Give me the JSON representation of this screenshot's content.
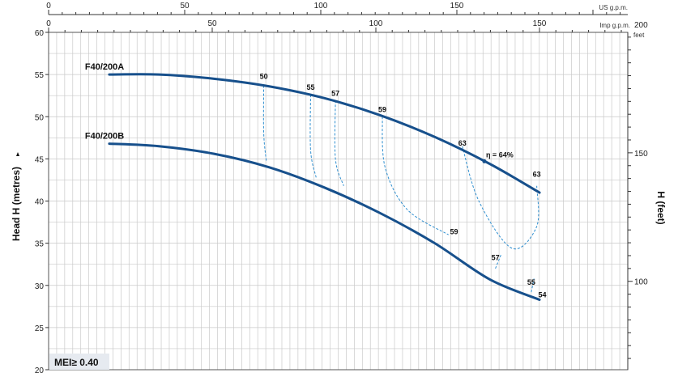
{
  "chart_data": {
    "type": "line",
    "y_axis": {
      "label": "Head H  (metres)",
      "range": [
        20,
        60
      ],
      "ticks": [
        "60",
        "55",
        "50",
        "45",
        "40",
        "35",
        "30",
        "25",
        "20"
      ]
    },
    "y2_axis": {
      "label": "H  (feet)",
      "unit": "feet",
      "ticks": [
        "200",
        "150",
        "100"
      ]
    },
    "x_axis_us": {
      "unit": "US g.p.m.",
      "range": [
        0,
        210
      ],
      "ticks": [
        "0",
        "50",
        "100",
        "150"
      ]
    },
    "x_axis_imp": {
      "unit": "Imp g.p.m.",
      "ticks": [
        "0",
        "50",
        "100",
        "150"
      ]
    },
    "series": [
      {
        "name": "F40/200A",
        "color": "#17508c",
        "points": [
          [
            22,
            55.0
          ],
          [
            40,
            55.0
          ],
          [
            60,
            54.5
          ],
          [
            80,
            53.6
          ],
          [
            100,
            52.2
          ],
          [
            120,
            50.2
          ],
          [
            140,
            47.6
          ],
          [
            160,
            44.4
          ],
          [
            178,
            41.0
          ]
        ]
      },
      {
        "name": "F40/200B",
        "color": "#17508c",
        "points": [
          [
            22,
            46.8
          ],
          [
            40,
            46.5
          ],
          [
            60,
            45.6
          ],
          [
            80,
            44.0
          ],
          [
            100,
            41.6
          ],
          [
            120,
            38.6
          ],
          [
            140,
            35.0
          ],
          [
            160,
            30.7
          ],
          [
            178,
            28.3
          ]
        ]
      }
    ],
    "efficiency_labels": [
      {
        "text": "50",
        "x": 78,
        "y": 53.9
      },
      {
        "text": "55",
        "x": 95,
        "y": 52.6
      },
      {
        "text": "57",
        "x": 104,
        "y": 51.9
      },
      {
        "text": "59",
        "x": 121,
        "y": 50.0
      },
      {
        "text": "63",
        "x": 150,
        "y": 46.0
      },
      {
        "text": "63",
        "x": 177,
        "y": 42.3
      },
      {
        "text": "59",
        "x": 147,
        "y": 35.5
      },
      {
        "text": "57",
        "x": 162,
        "y": 32.4
      },
      {
        "text": "55",
        "x": 175,
        "y": 29.5
      },
      {
        "text": "54",
        "x": 179,
        "y": 28.0
      }
    ],
    "efficiency_peak": {
      "text": "η = 64%",
      "x": 158,
      "y": 45.0
    },
    "efficiency_contours": [
      [
        [
          78,
          53.7
        ],
        [
          78,
          48.0
        ],
        [
          79,
          44.6
        ]
      ],
      [
        [
          95,
          52.6
        ],
        [
          95,
          46.0
        ],
        [
          97,
          42.8
        ]
      ],
      [
        [
          104,
          51.9
        ],
        [
          104,
          45.0
        ],
        [
          107,
          41.8
        ]
      ],
      [
        [
          121,
          50.0
        ],
        [
          122,
          44.0
        ],
        [
          130,
          39.0
        ],
        [
          145,
          36.0
        ]
      ],
      [
        [
          150,
          46.5
        ],
        [
          156,
          40.0
        ],
        [
          168,
          34.4
        ],
        [
          177,
          37.0
        ],
        [
          177,
          41.8
        ]
      ],
      [
        [
          162,
          32.0
        ],
        [
          164,
          33.6
        ]
      ],
      [
        [
          175,
          29.2
        ],
        [
          176,
          30.8
        ]
      ]
    ],
    "note": "MEI≥ 0.40",
    "grid": true
  }
}
